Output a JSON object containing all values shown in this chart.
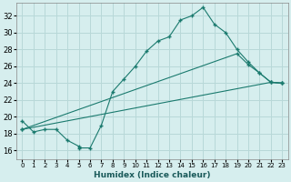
{
  "xlabel": "Humidex (Indice chaleur)",
  "bg_color": "#d6eeee",
  "grid_color": "#b8d8d8",
  "line_color": "#1a7a6e",
  "xlim": [
    -0.5,
    23.5
  ],
  "ylim": [
    15.0,
    33.5
  ],
  "xticks": [
    0,
    1,
    2,
    3,
    4,
    5,
    6,
    7,
    8,
    9,
    10,
    11,
    12,
    13,
    14,
    15,
    16,
    17,
    18,
    19,
    20,
    21,
    22,
    23
  ],
  "yticks": [
    16,
    18,
    20,
    22,
    24,
    26,
    28,
    30,
    32
  ],
  "line1_x": [
    0,
    1,
    2,
    3,
    4,
    5,
    5,
    6,
    7,
    8,
    9,
    10,
    11,
    12,
    13,
    14,
    15,
    16,
    17,
    18,
    19,
    20,
    21,
    22,
    23
  ],
  "line1_y": [
    19.5,
    18.2,
    18.5,
    18.5,
    17.2,
    16.5,
    16.3,
    16.3,
    19.0,
    23.0,
    24.5,
    26.0,
    27.8,
    29.0,
    29.5,
    31.5,
    32.0,
    33.0,
    31.0,
    30.0,
    28.0,
    26.5,
    25.2,
    24.1,
    24.0
  ],
  "line2_x": [
    0,
    19,
    20,
    21,
    22,
    23
  ],
  "line2_y": [
    18.5,
    27.5,
    26.2,
    25.2,
    24.1,
    24.0
  ],
  "line3_x": [
    0,
    22,
    23
  ],
  "line3_y": [
    18.5,
    24.1,
    24.0
  ]
}
